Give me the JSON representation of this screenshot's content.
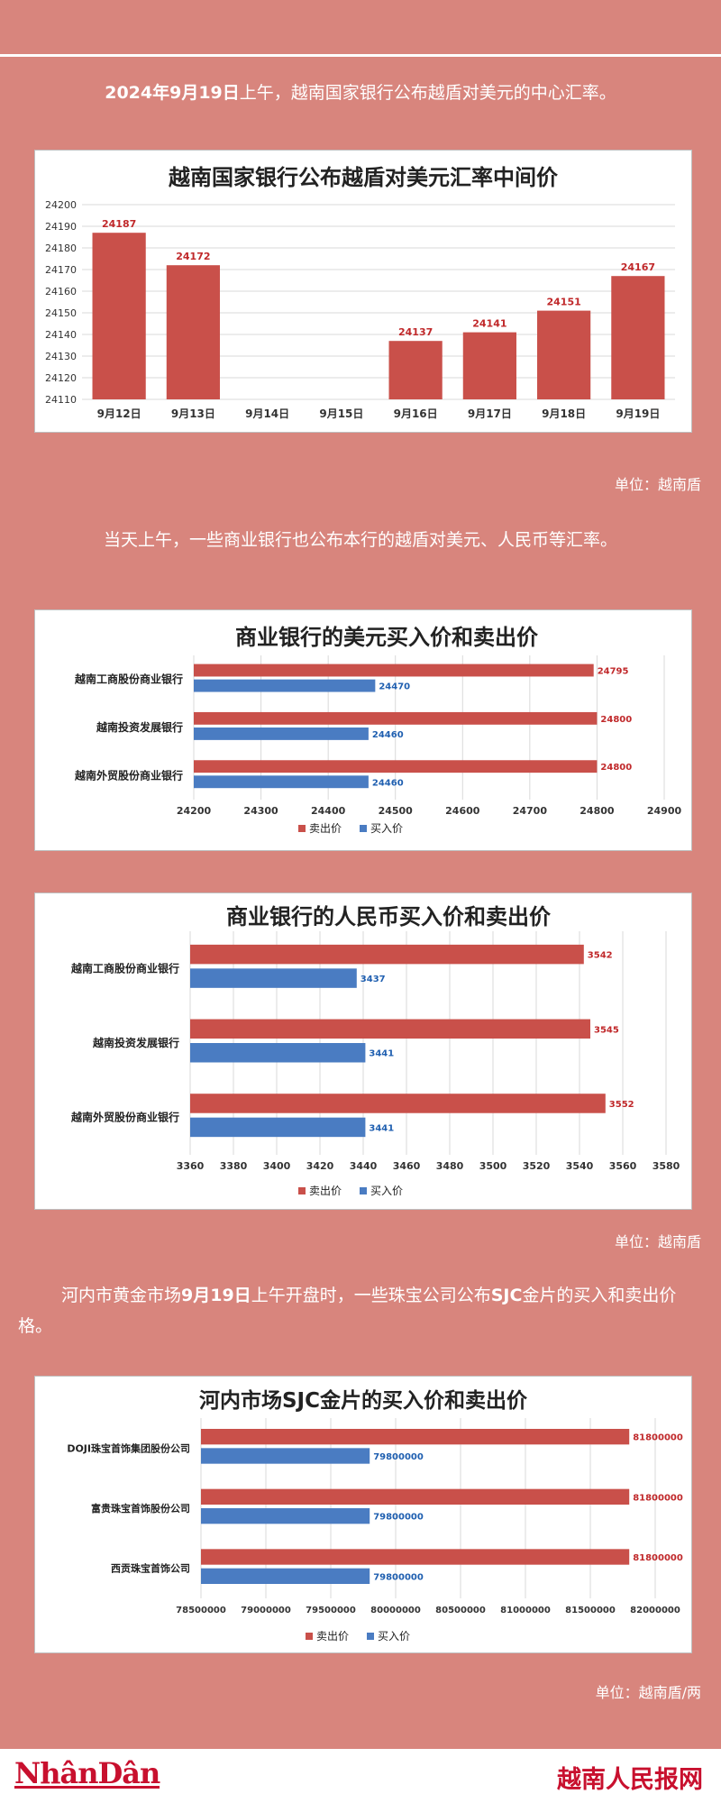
{
  "intro": {
    "date_text": "2024年9月19日",
    "rest_text": "上午，越南国家银行公布越盾对美元的中心汇率。"
  },
  "unit1": "单位：越南盾",
  "para2": "当天上午，一些商业银行也公布本行的越盾对美元、人民币等汇率。",
  "unit2": "单位：越南盾",
  "para3": {
    "pre": "河内市黄金市场",
    "date": "9月19日",
    "mid": "上午开盘时，一些珠宝公司公布",
    "bold": "SJC",
    "post": "金片的买入和卖出价格。"
  },
  "unit3": "单位：越南盾/两",
  "footer": {
    "left_logo": "NhânDân",
    "right_logo": "越南人民报网"
  },
  "colors": {
    "sell": "#c9504a",
    "buy": "#4a7cc2",
    "sell_label": "#c0282a",
    "buy_label": "#1f5fb0"
  },
  "chart_data": [
    {
      "type": "bar",
      "title": "越南国家银行公布越盾对美元汇率中间价",
      "categories": [
        "9月12日",
        "9月13日",
        "9月14日",
        "9月15日",
        "9月16日",
        "9月17日",
        "9月18日",
        "9月19日"
      ],
      "values": [
        24187,
        24172,
        null,
        null,
        24137,
        24141,
        24151,
        24167
      ],
      "ylim": [
        24110,
        24200
      ],
      "yticks": [
        24110,
        24120,
        24130,
        24140,
        24150,
        24160,
        24170,
        24180,
        24190,
        24200
      ],
      "grid": true
    },
    {
      "type": "bar",
      "orientation": "horizontal",
      "title": "商业银行的美元买入价和卖出价",
      "categories": [
        "越南工商股份商业银行",
        "越南投资发展银行",
        "越南外贸股份商业银行"
      ],
      "series": [
        {
          "name": "卖出价",
          "values": [
            24795,
            24800,
            24800
          ]
        },
        {
          "name": "买入价",
          "values": [
            24470,
            24460,
            24460
          ]
        }
      ],
      "xlim": [
        24200,
        24900
      ],
      "xticks": [
        24200,
        24300,
        24400,
        24500,
        24600,
        24700,
        24800,
        24900
      ],
      "legend": "bottom",
      "grid": true
    },
    {
      "type": "bar",
      "orientation": "horizontal",
      "title": "商业银行的人民币买入价和卖出价",
      "categories": [
        "越南工商股份商业银行",
        "越南投资发展银行",
        "越南外贸股份商业银行"
      ],
      "series": [
        {
          "name": "卖出价",
          "values": [
            3542,
            3545,
            3552
          ]
        },
        {
          "name": "买入价",
          "values": [
            3437,
            3441,
            3441
          ]
        }
      ],
      "xlim": [
        3360,
        3580
      ],
      "xticks": [
        3360,
        3380,
        3400,
        3420,
        3440,
        3460,
        3480,
        3500,
        3520,
        3540,
        3560,
        3580
      ],
      "legend": "bottom",
      "grid": true
    },
    {
      "type": "bar",
      "orientation": "horizontal",
      "title": "河内市场SJC金片的买入价和卖出价",
      "categories": [
        "DOJI珠宝首饰集团股份公司",
        "富贵珠宝首饰股份公司",
        "西贡珠宝首饰公司"
      ],
      "series": [
        {
          "name": "卖出价",
          "values": [
            81800000,
            81800000,
            81800000
          ]
        },
        {
          "name": "买入价",
          "values": [
            79800000,
            79800000,
            79800000
          ]
        }
      ],
      "xlim": [
        78500000,
        82000000
      ],
      "xticks": [
        78500000,
        79000000,
        79500000,
        80000000,
        80500000,
        81000000,
        81500000,
        82000000
      ],
      "legend": "bottom",
      "grid": true
    }
  ]
}
